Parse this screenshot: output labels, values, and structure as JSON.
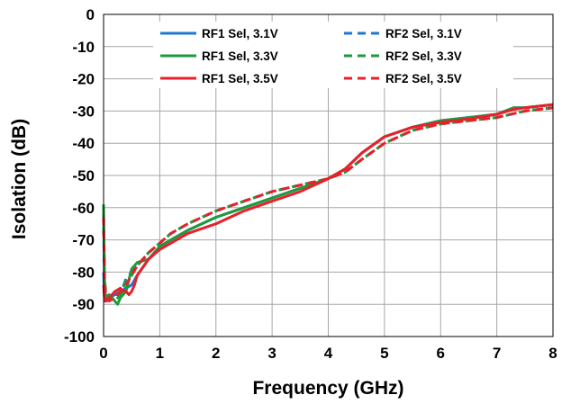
{
  "chart_data": {
    "type": "line",
    "title": "",
    "xlabel": "Frequency (GHz)",
    "ylabel": "Isolation (dB)",
    "xlim": [
      0,
      8
    ],
    "ylim": [
      -100,
      0
    ],
    "xticks": [
      "0",
      "1",
      "2",
      "3",
      "4",
      "5",
      "6",
      "7",
      "8"
    ],
    "yticks": [
      "0",
      "-10",
      "-20",
      "-30",
      "-40",
      "-50",
      "-60",
      "-70",
      "-80",
      "-90",
      "-100"
    ],
    "grid": true,
    "legend_position": "top",
    "series": [
      {
        "name": "RF1 Sel, 3.1V",
        "color": "#1f77d0",
        "dash": "solid",
        "x": [
          0,
          0.02,
          0.05,
          0.1,
          0.2,
          0.3,
          0.4,
          0.5,
          0.6,
          0.8,
          1.0,
          1.2,
          1.5,
          2.0,
          2.5,
          3.0,
          3.5,
          4.0,
          4.3,
          4.6,
          5.0,
          5.5,
          6.0,
          6.5,
          7.0,
          7.3,
          7.5,
          8.0
        ],
        "y": [
          -80,
          -88,
          -89,
          -88,
          -87,
          -86,
          -85,
          -84,
          -81,
          -76,
          -72,
          -70,
          -67,
          -63,
          -60,
          -57,
          -54,
          -51,
          -48,
          -43,
          -38,
          -35,
          -33,
          -32,
          -31,
          -29,
          -29,
          -28
        ]
      },
      {
        "name": "RF2 Sel, 3.1V",
        "color": "#1f77d0",
        "dash": "dashed",
        "x": [
          0,
          0.02,
          0.05,
          0.1,
          0.2,
          0.3,
          0.4,
          0.5,
          0.6,
          0.8,
          1.0,
          1.2,
          1.5,
          2.0,
          2.5,
          3.0,
          3.5,
          4.0,
          4.3,
          4.6,
          5.0,
          5.5,
          6.0,
          6.5,
          7.0,
          7.5,
          8.0
        ],
        "y": [
          -66,
          -84,
          -88,
          -88,
          -87,
          -87,
          -82,
          -80,
          -78,
          -74,
          -71,
          -68,
          -65,
          -61,
          -58,
          -55,
          -53,
          -51,
          -49,
          -45,
          -40,
          -36,
          -34,
          -33,
          -32,
          -30,
          -29
        ]
      },
      {
        "name": "RF1 Sel, 3.3V",
        "color": "#1e9a3d",
        "dash": "solid",
        "x": [
          0,
          0.02,
          0.05,
          0.1,
          0.15,
          0.2,
          0.25,
          0.3,
          0.4,
          0.5,
          0.6,
          0.8,
          1.0,
          1.2,
          1.5,
          2.0,
          2.5,
          3.0,
          3.5,
          4.0,
          4.3,
          4.6,
          5.0,
          5.5,
          6.0,
          6.5,
          7.0,
          7.3,
          7.5,
          8.0
        ],
        "y": [
          -59,
          -86,
          -88,
          -87,
          -88,
          -89,
          -90,
          -88,
          -86,
          -79,
          -77,
          -76,
          -72,
          -70,
          -67,
          -63,
          -60,
          -57,
          -54,
          -51,
          -48,
          -43,
          -38,
          -35,
          -33,
          -32,
          -31,
          -29,
          -29,
          -28
        ]
      },
      {
        "name": "RF2 Sel, 3.3V",
        "color": "#1e9a3d",
        "dash": "dashed",
        "x": [
          0,
          0.02,
          0.05,
          0.1,
          0.2,
          0.3,
          0.4,
          0.5,
          0.6,
          0.8,
          1.0,
          1.2,
          1.5,
          2.0,
          2.5,
          3.0,
          3.5,
          4.0,
          4.3,
          4.6,
          5.0,
          5.5,
          6.0,
          6.5,
          7.0,
          7.5,
          8.0
        ],
        "y": [
          -62,
          -83,
          -87,
          -88,
          -89,
          -87,
          -83,
          -81,
          -78,
          -74,
          -71,
          -68,
          -65,
          -61,
          -58,
          -55,
          -53,
          -51,
          -49,
          -45,
          -40,
          -36,
          -34,
          -33,
          -32,
          -30,
          -29
        ]
      },
      {
        "name": "RF1 Sel, 3.5V",
        "color": "#e8202a",
        "dash": "solid",
        "x": [
          0,
          0.02,
          0.05,
          0.1,
          0.15,
          0.2,
          0.3,
          0.35,
          0.4,
          0.45,
          0.5,
          0.55,
          0.6,
          0.8,
          1.0,
          1.2,
          1.5,
          2.0,
          2.5,
          3.0,
          3.5,
          4.0,
          4.3,
          4.6,
          5.0,
          5.5,
          6.0,
          6.5,
          7.0,
          7.3,
          7.5,
          8.0
        ],
        "y": [
          -84,
          -89,
          -89,
          -88,
          -87,
          -86,
          -85,
          -86,
          -86,
          -87,
          -86,
          -84,
          -81,
          -76,
          -73,
          -71,
          -68,
          -65,
          -61,
          -58,
          -55,
          -51,
          -48,
          -43,
          -38,
          -35,
          -33.5,
          -32.5,
          -31,
          -29.5,
          -29,
          -28
        ]
      },
      {
        "name": "RF2 Sel, 3.5V",
        "color": "#e8202a",
        "dash": "dashed",
        "x": [
          0,
          0.02,
          0.05,
          0.1,
          0.2,
          0.3,
          0.4,
          0.5,
          0.6,
          0.8,
          1.0,
          1.2,
          1.5,
          2.0,
          2.5,
          3.0,
          3.5,
          4.0,
          4.3,
          4.6,
          5.0,
          5.5,
          6.0,
          6.5,
          7.0,
          7.5,
          8.0
        ],
        "y": [
          -63,
          -84,
          -88,
          -89,
          -88,
          -86,
          -84,
          -81,
          -78,
          -74,
          -71,
          -68,
          -65,
          -61,
          -58,
          -55,
          -53,
          -51,
          -49,
          -45,
          -40,
          -36,
          -34,
          -33,
          -32,
          -30,
          -29
        ]
      }
    ]
  }
}
